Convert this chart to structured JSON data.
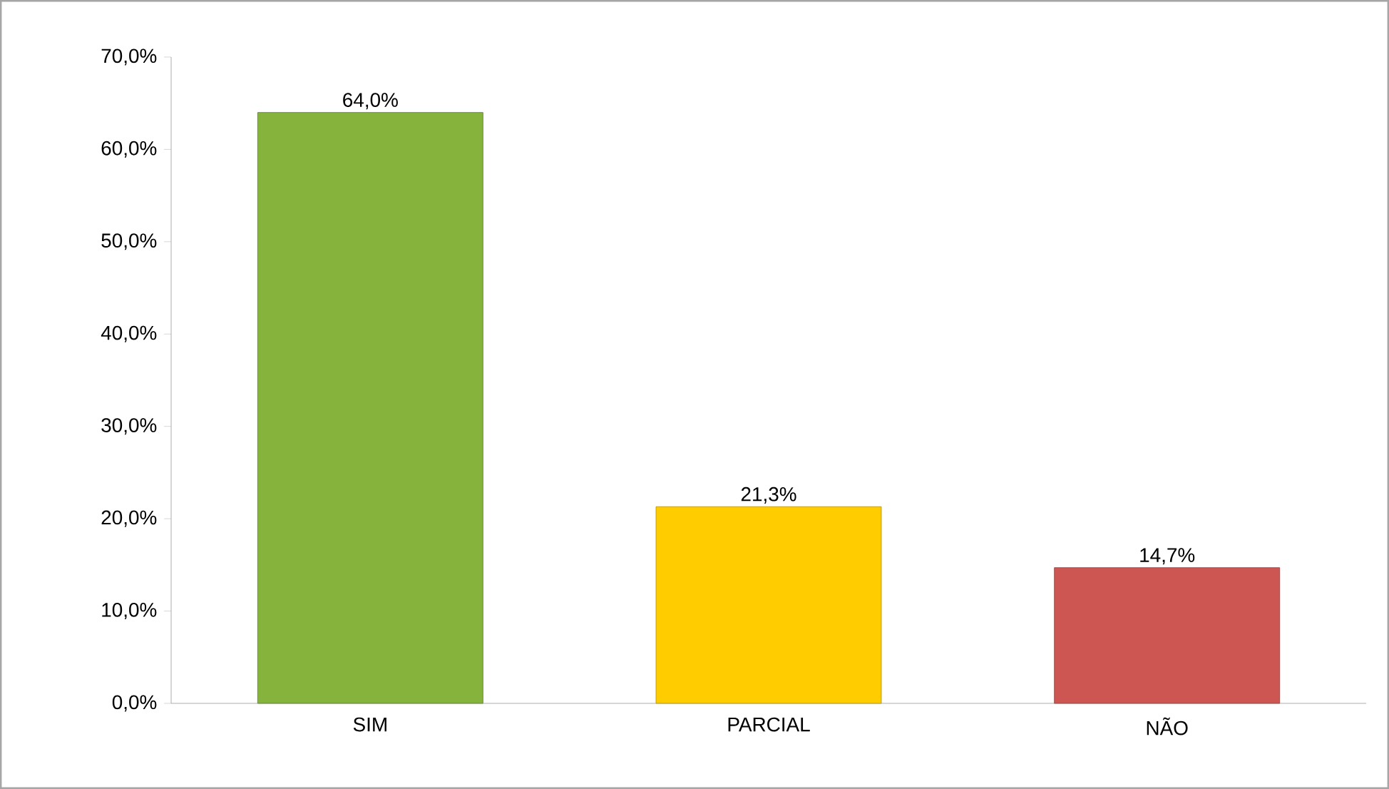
{
  "chart_data": {
    "type": "bar",
    "categories": [
      "SIM",
      "PARCIAL",
      "NÃO"
    ],
    "values": [
      64.0,
      21.3,
      14.7
    ],
    "colors": [
      "#86b33c",
      "#ffcc00",
      "#cd5552"
    ],
    "value_labels": [
      "64,0%",
      "21,3%",
      "14,7%"
    ],
    "ylim": [
      0,
      70
    ],
    "yticks": [
      {
        "value": 0,
        "label": "0,0%"
      },
      {
        "value": 10,
        "label": "10,0%"
      },
      {
        "value": 20,
        "label": "20,0%"
      },
      {
        "value": 30,
        "label": "30,0%"
      },
      {
        "value": 40,
        "label": "40,0%"
      },
      {
        "value": 50,
        "label": "50,0%"
      },
      {
        "value": 60,
        "label": "60,0%"
      },
      {
        "value": 70,
        "label": "70,0%"
      }
    ]
  }
}
